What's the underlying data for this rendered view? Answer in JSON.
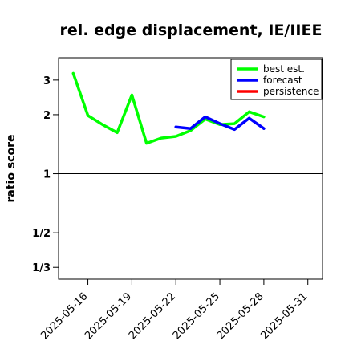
{
  "chart_data": {
    "type": "line",
    "title": "rel. edge displacement, IE/IIEE",
    "xlabel": "",
    "ylabel": "ratio score",
    "y_scale": "log",
    "ylim": [
      0.29,
      3.9
    ],
    "xlim": [
      "2025-05-14",
      "2025-06-01"
    ],
    "y_ticks": [
      {
        "value": 0.3333,
        "label": "1/3"
      },
      {
        "value": 0.5,
        "label": "1/2"
      },
      {
        "value": 1,
        "label": "1"
      },
      {
        "value": 2,
        "label": "2"
      },
      {
        "value": 3,
        "label": "3"
      }
    ],
    "x_ticks": [
      {
        "date": "2025-05-16",
        "label": "2025-05-16",
        "color": "#000000"
      },
      {
        "date": "2025-05-19",
        "label": "2025-05-19",
        "color": "#000000"
      },
      {
        "date": "2025-05-22",
        "label": "2025-05-22",
        "color": "#008000"
      },
      {
        "date": "2025-05-25",
        "label": "2025-05-25",
        "color": "#000000"
      },
      {
        "date": "2025-05-28",
        "label": "2025-05-28",
        "color": "#000000"
      },
      {
        "date": "2025-05-31",
        "label": "2025-05-31",
        "color": "#000000"
      }
    ],
    "reference_line": 1,
    "grid": false,
    "legend_position": "top-right",
    "series": [
      {
        "name": "best est.",
        "color": "#00ff00",
        "points": [
          {
            "x": "2025-05-15",
            "y": 3.25
          },
          {
            "x": "2025-05-16",
            "y": 1.98
          },
          {
            "x": "2025-05-17",
            "y": 1.78
          },
          {
            "x": "2025-05-18",
            "y": 1.62
          },
          {
            "x": "2025-05-19",
            "y": 2.52
          },
          {
            "x": "2025-05-20",
            "y": 1.43
          },
          {
            "x": "2025-05-21",
            "y": 1.52
          },
          {
            "x": "2025-05-22",
            "y": 1.55
          },
          {
            "x": "2025-05-23",
            "y": 1.66
          },
          {
            "x": "2025-05-24",
            "y": 1.9
          },
          {
            "x": "2025-05-25",
            "y": 1.78
          },
          {
            "x": "2025-05-26",
            "y": 1.8
          },
          {
            "x": "2025-05-27",
            "y": 2.07
          },
          {
            "x": "2025-05-28",
            "y": 1.95
          }
        ]
      },
      {
        "name": "forecast",
        "color": "#0000ff",
        "points": [
          {
            "x": "2025-05-22",
            "y": 1.73
          },
          {
            "x": "2025-05-23",
            "y": 1.7
          },
          {
            "x": "2025-05-24",
            "y": 1.95
          },
          {
            "x": "2025-05-25",
            "y": 1.8
          },
          {
            "x": "2025-05-26",
            "y": 1.68
          },
          {
            "x": "2025-05-27",
            "y": 1.92
          },
          {
            "x": "2025-05-28",
            "y": 1.7
          }
        ]
      },
      {
        "name": "persistence",
        "color": "#ff0000",
        "points": []
      }
    ]
  }
}
